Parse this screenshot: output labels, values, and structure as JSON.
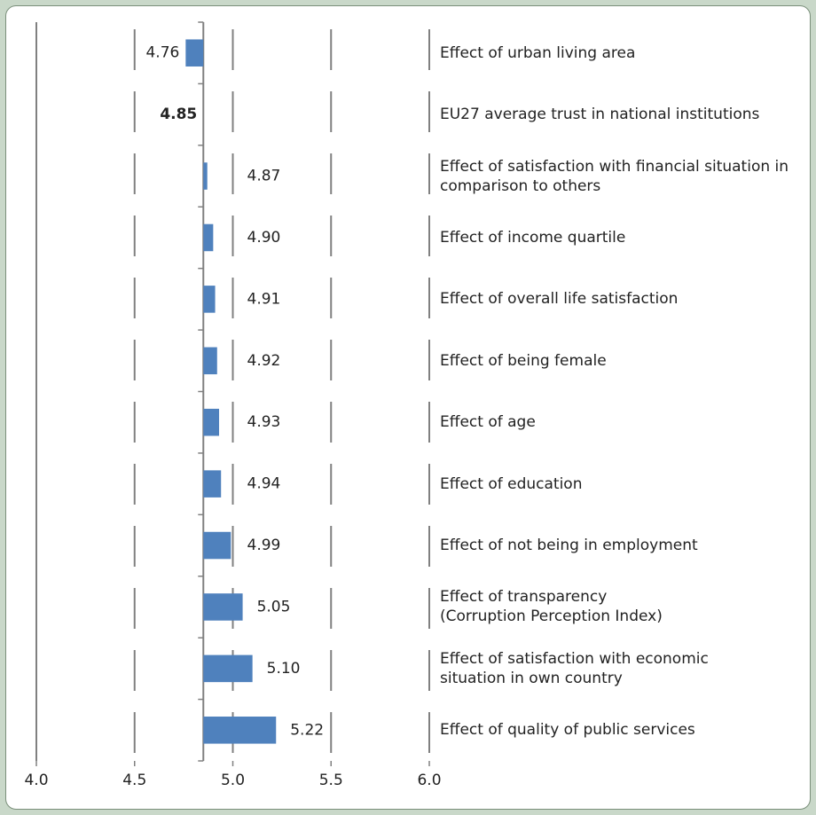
{
  "chart_data": {
    "type": "bar",
    "orientation": "horizontal",
    "categories": [
      "Effect of urban living area",
      "EU27 average trust in national institutions",
      "Effect of satisfaction with financial situation in\ncomparison to others",
      "Effect of income quartile",
      "Effect of overall life satisfaction",
      "Effect of being female",
      "Effect of age",
      "Effect of education",
      "Effect of not being in employment",
      "Effect of transparency\n(Corruption Perception Index)",
      "Effect of satisfaction with economic\nsituation in own country",
      "Effect of quality of public services"
    ],
    "values": [
      4.76,
      4.85,
      4.87,
      4.9,
      4.91,
      4.92,
      4.93,
      4.94,
      4.99,
      5.05,
      5.1,
      5.22
    ],
    "value_labels": [
      "4.76",
      "4.85",
      "4.87",
      "4.90",
      "4.91",
      "4.92",
      "4.93",
      "4.94",
      "4.99",
      "5.05",
      "5.10",
      "5.22"
    ],
    "color": "#4f81bd",
    "baseline": 4.85,
    "xlim": [
      4,
      6
    ],
    "xticks": [
      {
        "value": 4,
        "label": "4.0"
      },
      {
        "value": 4.5,
        "label": "4.5"
      },
      {
        "value": 5,
        "label": "5.0"
      },
      {
        "value": 5.5,
        "label": "5.5"
      },
      {
        "value": 6,
        "label": "6.0"
      }
    ],
    "grid": true
  }
}
